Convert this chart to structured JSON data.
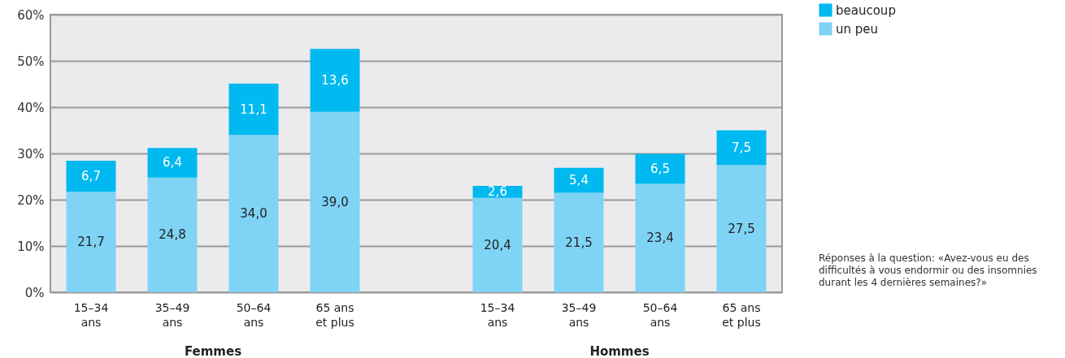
{
  "chart_data": {
    "type": "bar",
    "stacked": true,
    "categories": [
      "15–34\nans",
      "35–49\nans",
      "50–64\nans",
      "65 ans\net plus",
      null,
      "15–34\nans",
      "35–49\nans",
      "50–64\nans",
      "65 ans\net plus"
    ],
    "series": [
      {
        "name": "un peu",
        "color": "#7fd3f5",
        "values": [
          21.7,
          24.8,
          34.0,
          39.0,
          null,
          20.4,
          21.5,
          23.4,
          27.5
        ],
        "value_labels": [
          "21,7",
          "24,8",
          "34,0",
          "39,0",
          null,
          "20,4",
          "21,5",
          "23,4",
          "27,5"
        ]
      },
      {
        "name": "beaucoup",
        "color": "#00b9f0",
        "values": [
          6.7,
          6.4,
          11.1,
          13.6,
          null,
          2.6,
          5.4,
          6.5,
          7.5
        ],
        "value_labels": [
          "6,7",
          "6,4",
          "11,1",
          "13,6",
          null,
          "2,6",
          "5,4",
          "6,5",
          "7,5"
        ]
      }
    ],
    "ylim": [
      0,
      60
    ],
    "yticks": [
      {
        "value": 0,
        "label": "0%"
      },
      {
        "value": 10,
        "label": "10%"
      },
      {
        "value": 20,
        "label": "20%"
      },
      {
        "value": 30,
        "label": "30%"
      },
      {
        "value": 40,
        "label": "40%"
      },
      {
        "value": 50,
        "label": "50%"
      },
      {
        "value": 60,
        "label": "60%"
      }
    ],
    "grid": "y",
    "legend": "top right",
    "annotations": [
      "Femmes",
      "Hommes",
      "Réponses à la question: «Avez-vous eu des difficultés à vous endormir ou des insomnies durant les 4 dernières semaines?»"
    ]
  }
}
